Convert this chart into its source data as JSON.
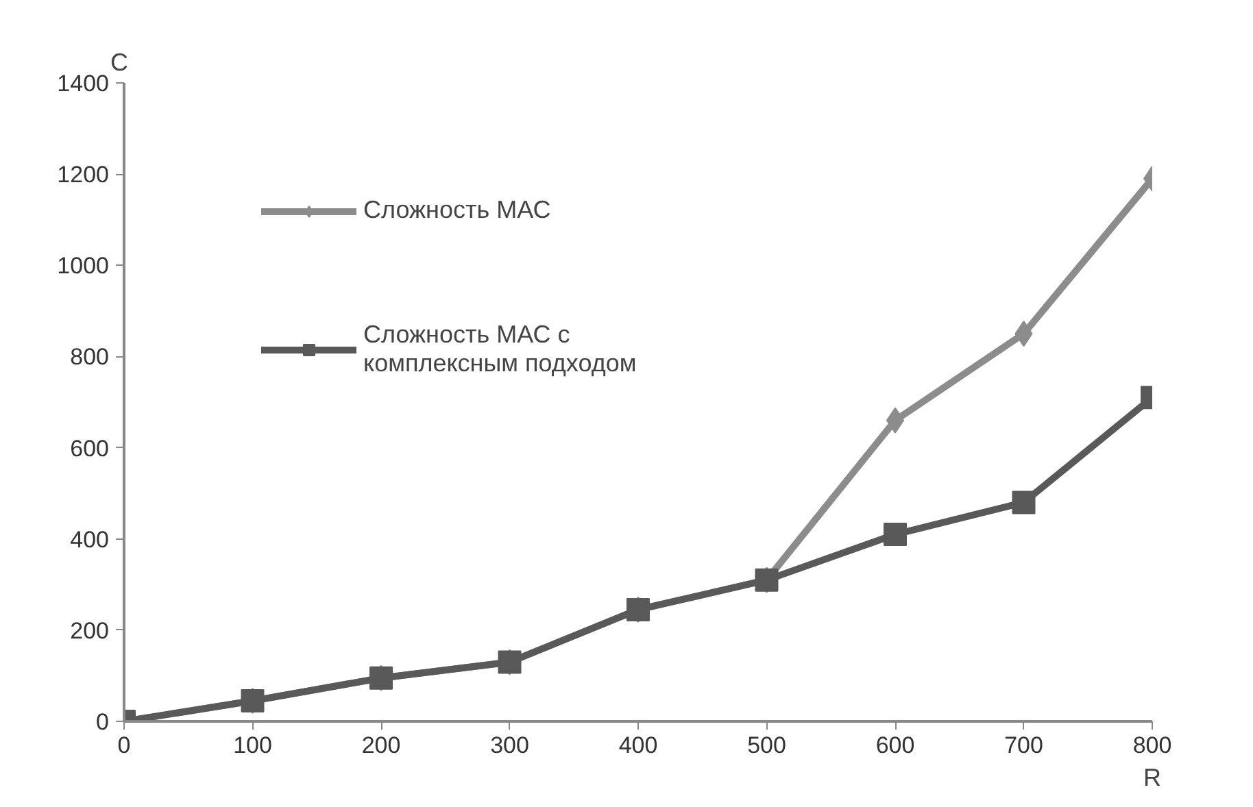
{
  "chart_data": {
    "type": "line",
    "xlabel": "R",
    "ylabel": "C",
    "x": [
      0,
      100,
      200,
      300,
      400,
      500,
      600,
      700,
      800
    ],
    "xlim": [
      0,
      800
    ],
    "xticks": [
      0,
      100,
      200,
      300,
      400,
      500,
      600,
      700,
      800
    ],
    "ylim": [
      0,
      1400
    ],
    "yticks": [
      0,
      200,
      400,
      600,
      800,
      1000,
      1200,
      1400
    ],
    "grid": false,
    "legend": "top left",
    "series": [
      {
        "name": "Сложность МАС",
        "color": "#8c8c8c",
        "marker": "diamond",
        "values": [
          0,
          45,
          95,
          130,
          245,
          310,
          660,
          850,
          1190
        ]
      },
      {
        "name": "Сложность МАС с комплексным подходом",
        "color": "#595959",
        "marker": "square",
        "values": [
          0,
          45,
          95,
          130,
          245,
          310,
          410,
          480,
          710
        ]
      }
    ]
  }
}
